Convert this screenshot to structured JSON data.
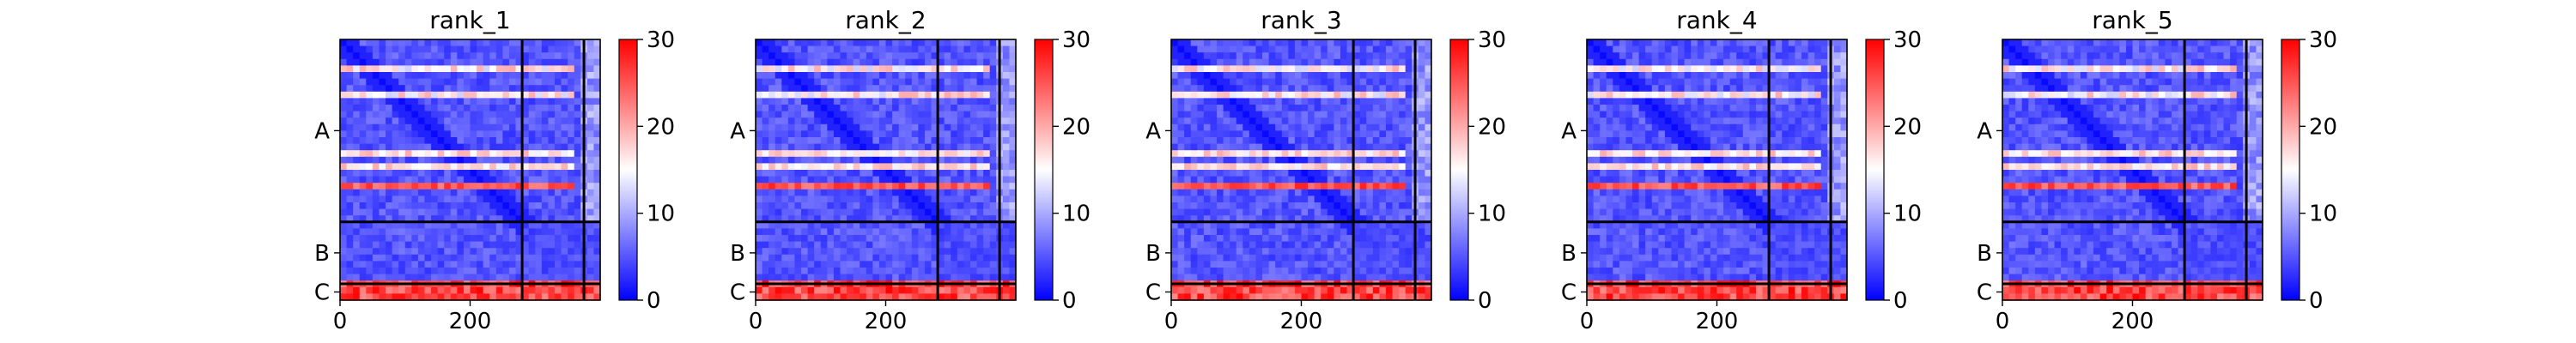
{
  "figure": {
    "background": "#ffffff"
  },
  "chart_data": {
    "type": "heatmap",
    "description_of_panels": "",
    "shared": {
      "colormap": [
        "#0000ff",
        "#ffffff",
        "#ff0000"
      ],
      "zlim": [
        0,
        30
      ],
      "colorbar_ticks": [
        "0",
        "10",
        "20",
        "30"
      ],
      "x_ticks": [
        {
          "value": 0,
          "label": "0"
        },
        {
          "value": 200,
          "label": "200"
        }
      ],
      "xlim": [
        0,
        400
      ],
      "chains": [
        {
          "label": "A",
          "start": 0,
          "end": 280
        },
        {
          "label": "B",
          "start": 280,
          "end": 375
        },
        {
          "label": "C",
          "start": 375,
          "end": 400
        }
      ],
      "chain_boundaries": [
        280,
        375
      ],
      "grid": false
    },
    "panels": [
      {
        "title": "rank_1"
      },
      {
        "title": "rank_2"
      },
      {
        "title": "rank_3"
      },
      {
        "title": "rank_4"
      },
      {
        "title": "rank_5"
      }
    ]
  }
}
